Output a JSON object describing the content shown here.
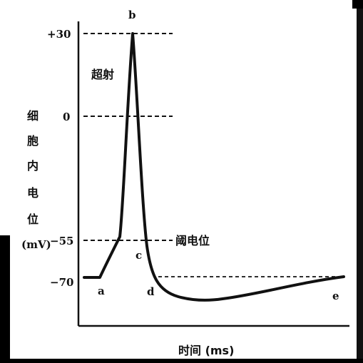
{
  "diagram": {
    "y_label_chars": [
      "细",
      "胞",
      "内",
      "电",
      "位"
    ],
    "y_unit": "(mV)",
    "x_label": "时间 (ms)",
    "y_ticks": [
      "+30",
      "0",
      "−55",
      "−70"
    ],
    "overshoot_label": "超射",
    "threshold_label": "阈电位",
    "points": {
      "a": "a",
      "b": "b",
      "c": "c",
      "d": "d",
      "e": "e"
    }
  }
}
